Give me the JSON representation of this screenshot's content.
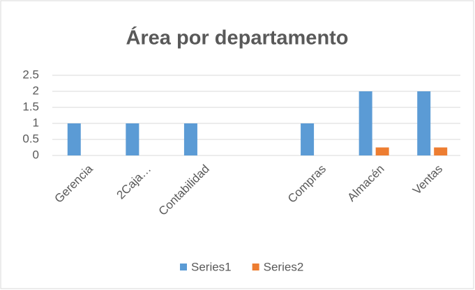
{
  "chart_data": {
    "type": "bar",
    "title": "Área por departamento",
    "categories": [
      "Gerencia",
      "2Caja…",
      "Contabilidad",
      null,
      "Compras",
      "Almacén",
      "Ventas"
    ],
    "series": [
      {
        "name": "Series1",
        "color": "#5b9bd5",
        "values": [
          1,
          1,
          1,
          null,
          1,
          2,
          2
        ]
      },
      {
        "name": "Series2",
        "color": "#ed7d31",
        "values": [
          null,
          null,
          null,
          null,
          null,
          0.25,
          0.25
        ]
      }
    ],
    "ylim": [
      0,
      2.5
    ],
    "yticks": [
      0,
      0.5,
      1,
      1.5,
      2,
      2.5
    ],
    "grid": true,
    "legend": "bottom"
  }
}
